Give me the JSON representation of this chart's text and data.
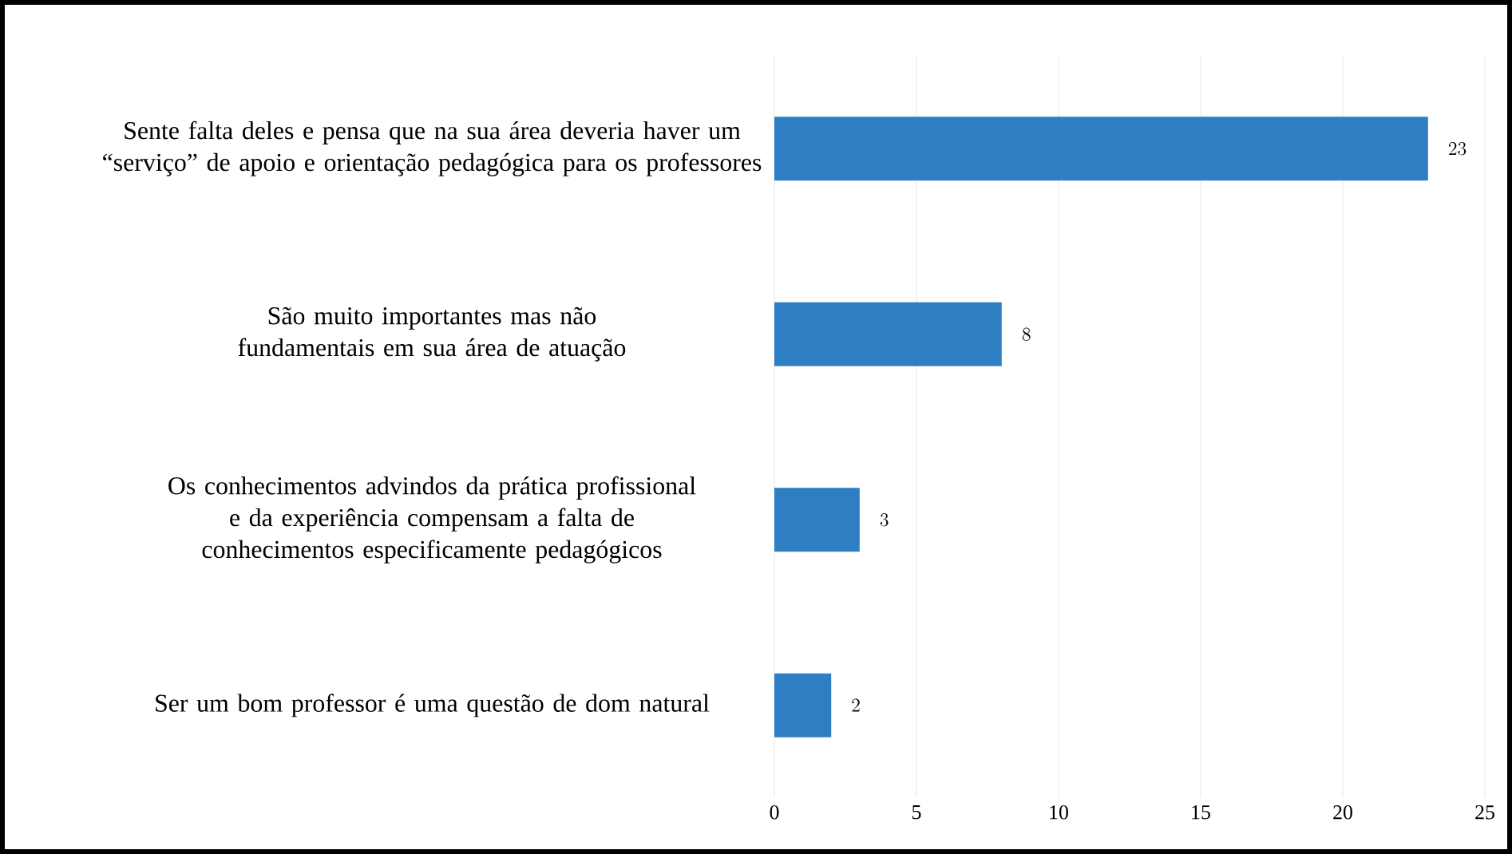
{
  "chart_data": {
    "type": "bar",
    "orientation": "horizontal",
    "categories": [
      "Sente falta deles e pensa que na sua área deveria haver um “serviço” de apoio e orientação pedagógica para os professores",
      "São muito importantes mas não fundamentais em sua área de atuação",
      "Os conhecimentos advindos da prática profissional e da experiência compensam a falta de conhecimentos especificamente pedagógicos",
      "Ser um bom professor é uma questão de dom natural"
    ],
    "values": [
      23,
      8,
      3,
      2
    ],
    "color": "#2e7ec4",
    "xlim": [
      0,
      25
    ],
    "xticks": [
      0,
      5,
      10,
      15,
      20,
      25
    ],
    "grid": "x",
    "data_labels": true
  }
}
